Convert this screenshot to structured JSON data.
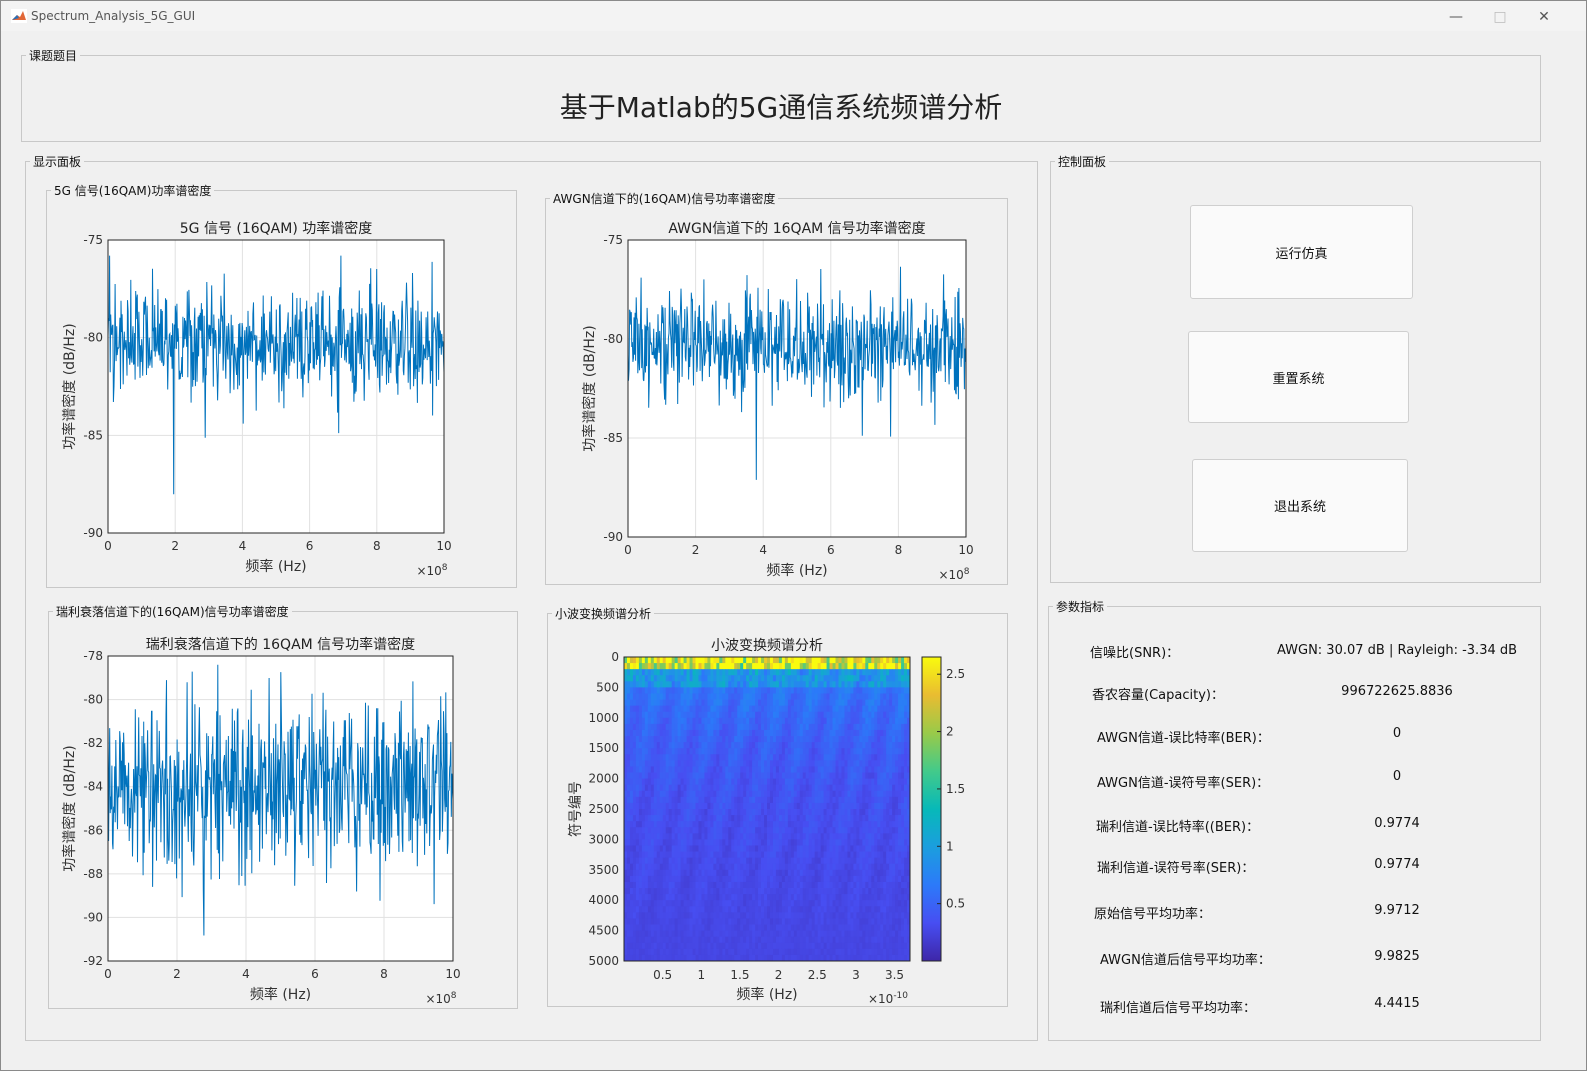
{
  "window": {
    "title": "Spectrum_Analysis_5G_GUI",
    "controls": {
      "minimize": "—",
      "maximize": "□",
      "close": "✕"
    }
  },
  "topic": {
    "legend": "课题题目",
    "title": "基于Matlab的5G通信系统频谱分析"
  },
  "display": {
    "legend": "显示面板",
    "p1_legend": "5G 信号(16QAM)功率谱密度",
    "p2_legend": "AWGN信道下的(16QAM)信号功率谱密度",
    "p3_legend": "瑞利衰落信道下的(16QAM)信号功率谱密度",
    "p4_legend": "小波变换频谱分析"
  },
  "control": {
    "legend": "控制面板",
    "run_label": "运行仿真",
    "reset_label": "重置系统",
    "exit_label": "退出系统"
  },
  "params": {
    "legend": "参数指标",
    "items": [
      {
        "label": "信噪比(SNR)：",
        "value": "AWGN: 30.07 dB | Rayleigh: -3.34 dB"
      },
      {
        "label": "香农容量(Capacity)：",
        "value": "996722625.8836"
      },
      {
        "label": "AWGN信道-误比特率(BER)：",
        "value": "0"
      },
      {
        "label": "AWGN信道-误符号率(SER)：",
        "value": "0"
      },
      {
        "label": "瑞利信道-误比特率((BER)：",
        "value": "0.9774"
      },
      {
        "label": "瑞利信道-误符号率(SER)：",
        "value": "0.9774"
      },
      {
        "label": "原始信号平均功率：",
        "value": "9.9712"
      },
      {
        "label": "AWGN信道后信号平均功率：",
        "value": "9.9825"
      },
      {
        "label": "瑞利信道后信号平均功率：",
        "value": "4.4415"
      }
    ]
  },
  "colors": {
    "line": "#0072BD",
    "accent": "#0072BD"
  },
  "chart_data": [
    {
      "type": "line",
      "title": "5G 信号 (16QAM) 功率谱密度",
      "xlabel": "频率 (Hz)",
      "ylabel": "功率谱密度 (dB/Hz)",
      "xlim": [
        0,
        10
      ],
      "ylim": [
        -90,
        -75
      ],
      "x_exponent": "×10^8",
      "xticks": [
        "0",
        "2",
        "4",
        "6",
        "8",
        "10"
      ],
      "yticks": [
        "-90",
        "-85",
        "-80",
        "-75"
      ],
      "grid": true,
      "note": "noisy PSD fluctuating around -80 dB/Hz, range about -88.5 to -76"
    },
    {
      "type": "line",
      "title": "AWGN信道下的 16QAM 信号功率谱密度",
      "xlabel": "频率 (Hz)",
      "ylabel": "功率谱密度 (dB/Hz)",
      "xlim": [
        0,
        10
      ],
      "ylim": [
        -90,
        -75
      ],
      "x_exponent": "×10^8",
      "xticks": [
        "0",
        "2",
        "4",
        "6",
        "8",
        "10"
      ],
      "yticks": [
        "-90",
        "-85",
        "-80",
        "-75"
      ],
      "grid": true,
      "note": "noisy PSD fluctuating around -80 dB/Hz, range about -88.5 to -76"
    },
    {
      "type": "line",
      "title": "瑞利衰落信道下的 16QAM 信号功率谱密度",
      "xlabel": "频率 (Hz)",
      "ylabel": "功率谱密度 (dB/Hz)",
      "xlim": [
        0,
        10
      ],
      "ylim": [
        -92,
        -78
      ],
      "x_exponent": "×10^8",
      "xticks": [
        "0",
        "2",
        "4",
        "6",
        "8",
        "10"
      ],
      "yticks": [
        "-92",
        "-90",
        "-88",
        "-86",
        "-84",
        "-82",
        "-80",
        "-78"
      ],
      "grid": true,
      "note": "noisy PSD fluctuating around -84 dB/Hz, range about -91.5 to -78.5"
    },
    {
      "type": "heatmap",
      "title": "小波变换频谱分析",
      "xlabel": "频率 (Hz)",
      "ylabel": "符号编号",
      "x_exponent": "×10^-10",
      "xlim": [
        0,
        3.7
      ],
      "ylim": [
        0,
        5000
      ],
      "xticks": [
        "0.5",
        "1",
        "1.5",
        "2",
        "2.5",
        "3",
        "3.5"
      ],
      "yticks": [
        "0",
        "500",
        "1000",
        "1500",
        "2000",
        "2500",
        "3000",
        "3500",
        "4000",
        "4500",
        "5000"
      ],
      "colorbar": {
        "min": 0,
        "max": 2.65,
        "ticks": [
          "0.5",
          "1",
          "1.5",
          "2",
          "2.5"
        ]
      },
      "colormap": "parula"
    }
  ]
}
